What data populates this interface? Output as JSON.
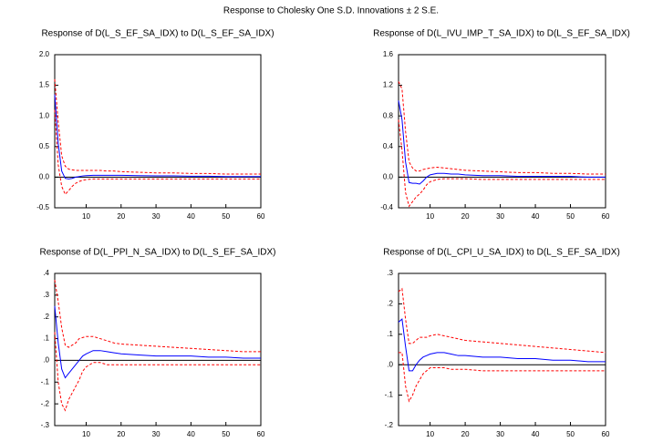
{
  "title": "Response to Cholesky One S.D. Innovations ± 2 S.E.",
  "chart_data": [
    {
      "type": "line",
      "title": "Response of D(L_S_EF_SA_IDX) to D(L_S_EF_SA_IDX)",
      "x": [
        1,
        2,
        3,
        4,
        5,
        6,
        7,
        8,
        9,
        10,
        12,
        14,
        16,
        18,
        20,
        25,
        30,
        35,
        40,
        45,
        50,
        55,
        60
      ],
      "xlim": [
        1,
        60
      ],
      "xticks": [
        10,
        20,
        30,
        40,
        50,
        60
      ],
      "ylim": [
        -0.5,
        2.0
      ],
      "yticks": [
        {
          "value": -0.5,
          "label": "-0.5"
        },
        {
          "value": 0,
          "label": "0.0"
        },
        {
          "value": 0.5,
          "label": "0.5"
        },
        {
          "value": 1,
          "label": "1.0"
        },
        {
          "value": 1.5,
          "label": "1.5"
        },
        {
          "value": 2,
          "label": "2.0"
        }
      ],
      "zero_line": true,
      "grid": false,
      "series": [
        {
          "color": "#0000ff",
          "dashed": false,
          "values": [
            1.35,
            0.55,
            0.1,
            -0.02,
            -0.03,
            -0.02,
            0.0,
            0.01,
            0.02,
            0.025,
            0.03,
            0.03,
            0.03,
            0.03,
            0.03,
            0.025,
            0.02,
            0.02,
            0.015,
            0.015,
            0.01,
            0.01,
            0.01
          ]
        },
        {
          "color": "#ff0000",
          "dashed": true,
          "values": [
            1.6,
            0.9,
            0.35,
            0.18,
            0.13,
            0.12,
            0.11,
            0.11,
            0.11,
            0.11,
            0.11,
            0.11,
            0.1,
            0.1,
            0.09,
            0.08,
            0.07,
            0.07,
            0.06,
            0.06,
            0.05,
            0.05,
            0.05
          ]
        },
        {
          "color": "#ff0000",
          "dashed": true,
          "values": [
            1.1,
            0.2,
            -0.15,
            -0.28,
            -0.22,
            -0.15,
            -0.1,
            -0.07,
            -0.05,
            -0.04,
            -0.03,
            -0.03,
            -0.03,
            -0.03,
            -0.03,
            -0.03,
            -0.03,
            -0.03,
            -0.03,
            -0.03,
            -0.03,
            -0.03,
            -0.03
          ]
        }
      ]
    },
    {
      "type": "line",
      "title": "Response of D(L_IVU_IMP_T_SA_IDX) to D(L_S_EF_SA_IDX)",
      "x": [
        1,
        2,
        3,
        4,
        5,
        6,
        7,
        8,
        9,
        10,
        12,
        14,
        16,
        18,
        20,
        25,
        30,
        35,
        40,
        45,
        50,
        55,
        60
      ],
      "xlim": [
        1,
        60
      ],
      "xticks": [
        10,
        20,
        30,
        40,
        50,
        60
      ],
      "ylim": [
        -0.4,
        1.6
      ],
      "yticks": [
        {
          "value": -0.4,
          "label": "-0.4"
        },
        {
          "value": 0,
          "label": "0.0"
        },
        {
          "value": 0.4,
          "label": "0.4"
        },
        {
          "value": 0.8,
          "label": "0.8"
        },
        {
          "value": 1.2,
          "label": "1.2"
        },
        {
          "value": 1.6,
          "label": "1.6"
        }
      ],
      "zero_line": true,
      "grid": false,
      "series": [
        {
          "color": "#0000ff",
          "dashed": false,
          "values": [
            1.0,
            0.75,
            0.2,
            -0.07,
            -0.08,
            -0.08,
            -0.09,
            -0.05,
            0.0,
            0.03,
            0.05,
            0.05,
            0.04,
            0.04,
            0.03,
            0.02,
            0.02,
            0.01,
            0.01,
            0.01,
            0.01,
            0.0,
            0.0
          ]
        },
        {
          "color": "#ff0000",
          "dashed": true,
          "values": [
            1.25,
            1.15,
            0.6,
            0.2,
            0.12,
            0.08,
            0.08,
            0.1,
            0.11,
            0.12,
            0.13,
            0.12,
            0.11,
            0.1,
            0.09,
            0.08,
            0.07,
            0.06,
            0.06,
            0.05,
            0.05,
            0.04,
            0.04
          ]
        },
        {
          "color": "#ff0000",
          "dashed": true,
          "values": [
            0.75,
            0.35,
            -0.2,
            -0.38,
            -0.32,
            -0.26,
            -0.22,
            -0.17,
            -0.1,
            -0.06,
            -0.03,
            -0.02,
            -0.02,
            -0.02,
            -0.02,
            -0.03,
            -0.03,
            -0.03,
            -0.03,
            -0.03,
            -0.03,
            -0.03,
            -0.03
          ]
        }
      ]
    },
    {
      "type": "line",
      "title": "Response of D(L_PPI_N_SA_IDX) to D(L_S_EF_SA_IDX)",
      "x": [
        1,
        2,
        3,
        4,
        5,
        6,
        7,
        8,
        9,
        10,
        12,
        14,
        16,
        18,
        20,
        25,
        30,
        35,
        40,
        45,
        50,
        55,
        60
      ],
      "xlim": [
        1,
        60
      ],
      "xticks": [
        10,
        20,
        30,
        40,
        50,
        60
      ],
      "ylim": [
        -0.3,
        0.4
      ],
      "yticks": [
        {
          "value": -0.3,
          "label": "-.3"
        },
        {
          "value": -0.2,
          "label": "-.2"
        },
        {
          "value": -0.1,
          "label": "-.1"
        },
        {
          "value": 0,
          "label": ".0"
        },
        {
          "value": 0.1,
          "label": ".1"
        },
        {
          "value": 0.2,
          "label": ".2"
        },
        {
          "value": 0.3,
          "label": ".3"
        },
        {
          "value": 0.4,
          "label": ".4"
        }
      ],
      "zero_line": true,
      "grid": false,
      "series": [
        {
          "color": "#0000ff",
          "dashed": false,
          "values": [
            0.25,
            0.08,
            -0.04,
            -0.08,
            -0.06,
            -0.04,
            -0.02,
            0.0,
            0.02,
            0.03,
            0.045,
            0.045,
            0.04,
            0.035,
            0.03,
            0.025,
            0.02,
            0.02,
            0.02,
            0.015,
            0.015,
            0.01,
            0.01
          ]
        },
        {
          "color": "#ff0000",
          "dashed": true,
          "values": [
            0.37,
            0.27,
            0.15,
            0.07,
            0.06,
            0.07,
            0.08,
            0.1,
            0.105,
            0.11,
            0.11,
            0.1,
            0.09,
            0.08,
            0.075,
            0.07,
            0.065,
            0.06,
            0.055,
            0.05,
            0.045,
            0.04,
            0.04
          ]
        },
        {
          "color": "#ff0000",
          "dashed": true,
          "values": [
            0.13,
            -0.1,
            -0.2,
            -0.23,
            -0.18,
            -0.15,
            -0.12,
            -0.09,
            -0.05,
            -0.03,
            -0.01,
            -0.01,
            -0.02,
            -0.02,
            -0.02,
            -0.02,
            -0.02,
            -0.02,
            -0.02,
            -0.02,
            -0.02,
            -0.02,
            -0.02
          ]
        }
      ]
    },
    {
      "type": "line",
      "title": "Response of D(L_CPI_U_SA_IDX) to D(L_S_EF_SA_IDX)",
      "x": [
        1,
        2,
        3,
        4,
        5,
        6,
        7,
        8,
        9,
        10,
        12,
        14,
        16,
        18,
        20,
        25,
        30,
        35,
        40,
        45,
        50,
        55,
        60
      ],
      "xlim": [
        1,
        60
      ],
      "xticks": [
        10,
        20,
        30,
        40,
        50,
        60
      ],
      "ylim": [
        -0.2,
        0.3
      ],
      "yticks": [
        {
          "value": -0.2,
          "label": "-.2"
        },
        {
          "value": -0.1,
          "label": "-.1"
        },
        {
          "value": 0,
          "label": ".0"
        },
        {
          "value": 0.1,
          "label": ".1"
        },
        {
          "value": 0.2,
          "label": ".2"
        },
        {
          "value": 0.3,
          "label": ".3"
        }
      ],
      "zero_line": true,
      "grid": false,
      "series": [
        {
          "color": "#0000ff",
          "dashed": false,
          "values": [
            0.14,
            0.15,
            0.06,
            -0.02,
            -0.02,
            0.0,
            0.015,
            0.025,
            0.03,
            0.035,
            0.04,
            0.04,
            0.035,
            0.03,
            0.03,
            0.025,
            0.025,
            0.02,
            0.02,
            0.015,
            0.015,
            0.01,
            0.01
          ]
        },
        {
          "color": "#ff0000",
          "dashed": true,
          "values": [
            0.24,
            0.25,
            0.15,
            0.07,
            0.07,
            0.08,
            0.09,
            0.09,
            0.09,
            0.095,
            0.1,
            0.095,
            0.09,
            0.085,
            0.08,
            0.075,
            0.07,
            0.065,
            0.06,
            0.055,
            0.05,
            0.045,
            0.04
          ]
        },
        {
          "color": "#ff0000",
          "dashed": true,
          "values": [
            0.04,
            0.04,
            -0.07,
            -0.12,
            -0.1,
            -0.07,
            -0.05,
            -0.03,
            -0.02,
            -0.01,
            -0.01,
            -0.01,
            -0.015,
            -0.015,
            -0.015,
            -0.02,
            -0.02,
            -0.02,
            -0.02,
            -0.02,
            -0.02,
            -0.02,
            -0.02
          ]
        }
      ]
    }
  ]
}
